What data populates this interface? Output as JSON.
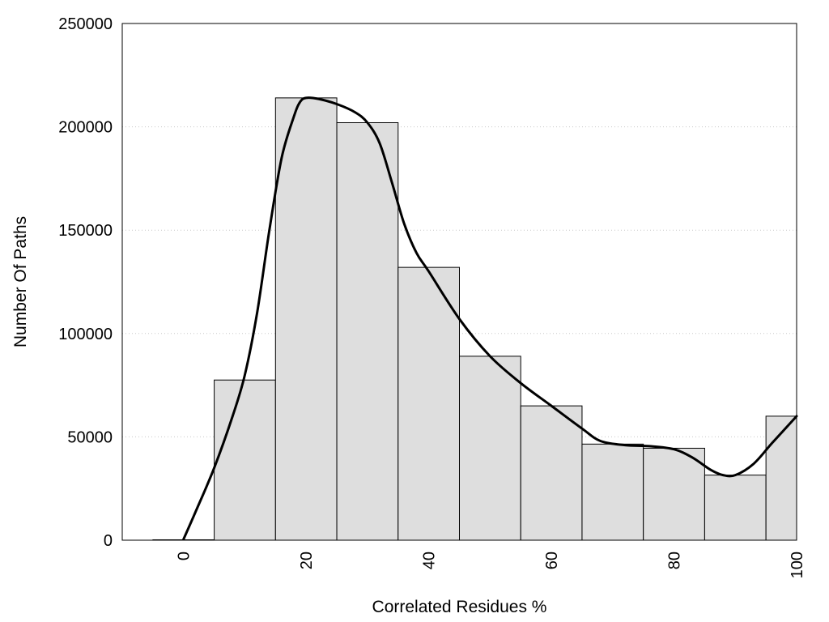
{
  "chart_data": {
    "type": "bar",
    "title": "",
    "xlabel": "Correlated Residues %",
    "ylabel": "Number Of Paths",
    "xlim": [
      -10,
      100
    ],
    "ylim": [
      0,
      250000
    ],
    "xticks": [
      0,
      20,
      40,
      60,
      80,
      100
    ],
    "yticks": [
      0,
      50000,
      100000,
      150000,
      200000,
      250000
    ],
    "grid": "y-dotted",
    "bar_width": 10,
    "bars": [
      {
        "x": 0,
        "value": 200
      },
      {
        "x": 10,
        "value": 77500
      },
      {
        "x": 20,
        "value": 214000
      },
      {
        "x": 30,
        "value": 202000
      },
      {
        "x": 40,
        "value": 132000
      },
      {
        "x": 50,
        "value": 89000
      },
      {
        "x": 60,
        "value": 65000
      },
      {
        "x": 70,
        "value": 46500
      },
      {
        "x": 80,
        "value": 44500
      },
      {
        "x": 90,
        "value": 31500
      },
      {
        "x": 100,
        "value": 60000
      }
    ],
    "curve": {
      "x": [
        0,
        2,
        5,
        8,
        10,
        12,
        14,
        16,
        18,
        19,
        20,
        22,
        25,
        28,
        30,
        32,
        34,
        36,
        38,
        40,
        45,
        50,
        55,
        60,
        65,
        68,
        72,
        76,
        80,
        83,
        86,
        88,
        90,
        93,
        96,
        100
      ],
      "y": [
        500,
        14000,
        35000,
        60000,
        80000,
        110000,
        150000,
        185000,
        205000,
        212000,
        214000,
        213500,
        211000,
        207000,
        202000,
        192000,
        173000,
        153000,
        139000,
        130000,
        107000,
        89000,
        76000,
        65000,
        54000,
        48000,
        46000,
        45500,
        44000,
        40000,
        34000,
        31500,
        31500,
        37000,
        47000,
        60000
      ]
    }
  }
}
